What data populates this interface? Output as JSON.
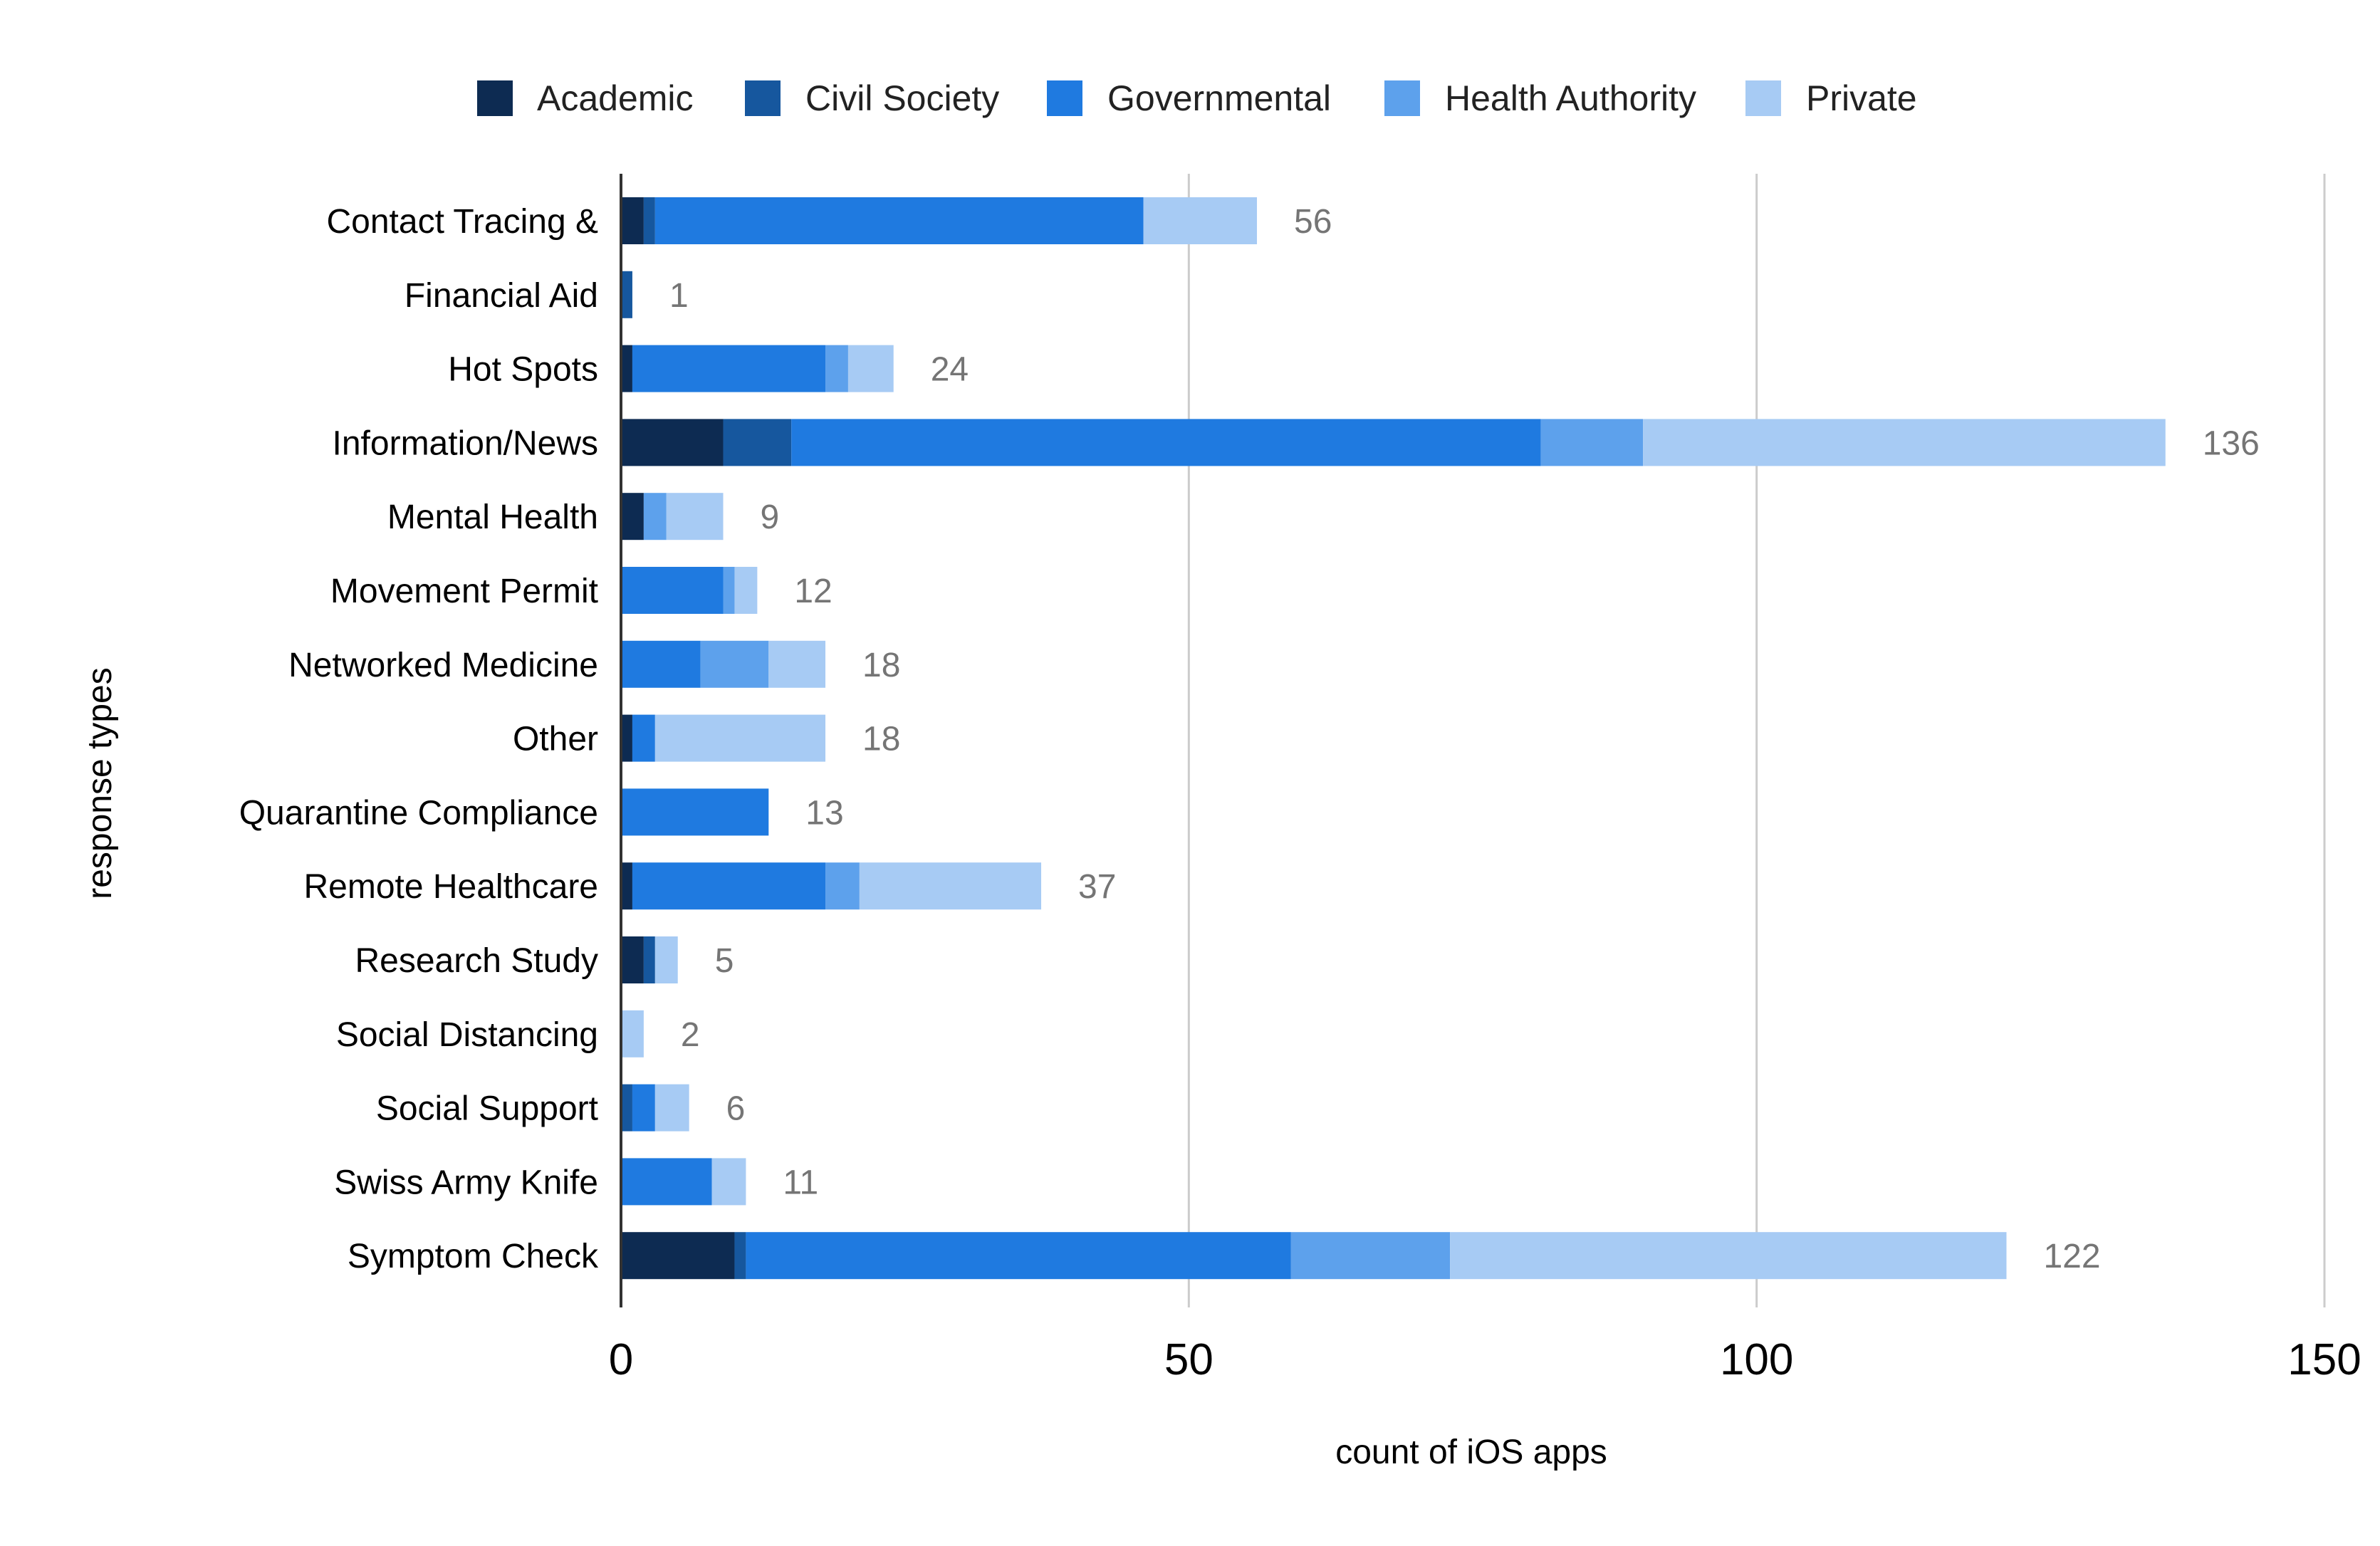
{
  "chart_data": {
    "type": "bar",
    "orientation": "horizontal",
    "stacked": true,
    "title": "",
    "xlabel": "count of iOS apps",
    "ylabel": "response types",
    "xlim": [
      0,
      150
    ],
    "xticks": [
      0,
      50,
      100,
      150
    ],
    "grid": true,
    "legend_position": "top",
    "categories": [
      "Contact Tracing &",
      "Financial Aid",
      "Hot Spots",
      "Information/News",
      "Mental Health",
      "Movement Permit",
      "Networked Medicine",
      "Other",
      "Quarantine Compliance",
      "Remote Healthcare",
      "Research Study",
      "Social Distancing",
      "Social Support",
      "Swiss Army Knife",
      "Symptom Check"
    ],
    "series": [
      {
        "name": "Academic",
        "color": "#0d2b52",
        "values": [
          2,
          0,
          1,
          9,
          2,
          0,
          0,
          1,
          0,
          1,
          2,
          0,
          0,
          0,
          10
        ]
      },
      {
        "name": "Civil Society",
        "color": "#16579e",
        "values": [
          1,
          1,
          0,
          6,
          0,
          0,
          0,
          0,
          0,
          0,
          1,
          0,
          1,
          0,
          1
        ]
      },
      {
        "name": "Governmental",
        "color": "#1f7ae0",
        "values": [
          43,
          0,
          17,
          66,
          0,
          9,
          7,
          2,
          13,
          17,
          0,
          0,
          2,
          8,
          48
        ]
      },
      {
        "name": "Health Authority",
        "color": "#5da1ec",
        "values": [
          0,
          0,
          2,
          9,
          2,
          1,
          6,
          0,
          0,
          3,
          0,
          0,
          0,
          0,
          14
        ]
      },
      {
        "name": "Private",
        "color": "#a7cbf4",
        "values": [
          10,
          0,
          4,
          46,
          5,
          2,
          5,
          15,
          0,
          16,
          2,
          2,
          3,
          3,
          49
        ]
      }
    ],
    "totals": [
      56,
      1,
      24,
      136,
      9,
      12,
      18,
      18,
      13,
      37,
      5,
      2,
      6,
      11,
      122
    ]
  }
}
